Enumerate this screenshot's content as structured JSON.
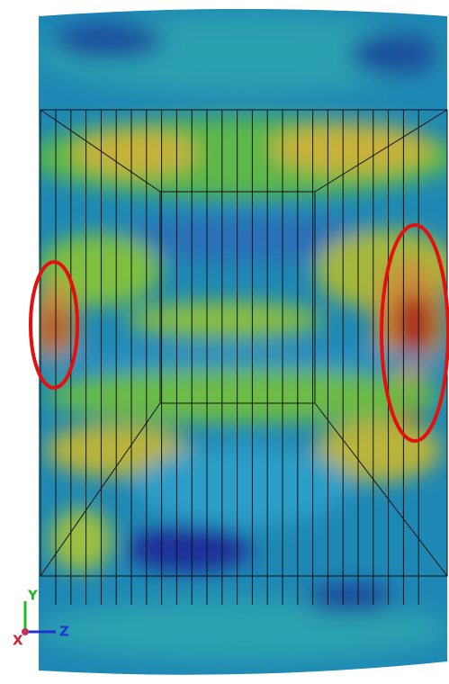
{
  "axis_triad": {
    "y_label": "Y",
    "z_label": "Z",
    "x_label": "X"
  }
}
